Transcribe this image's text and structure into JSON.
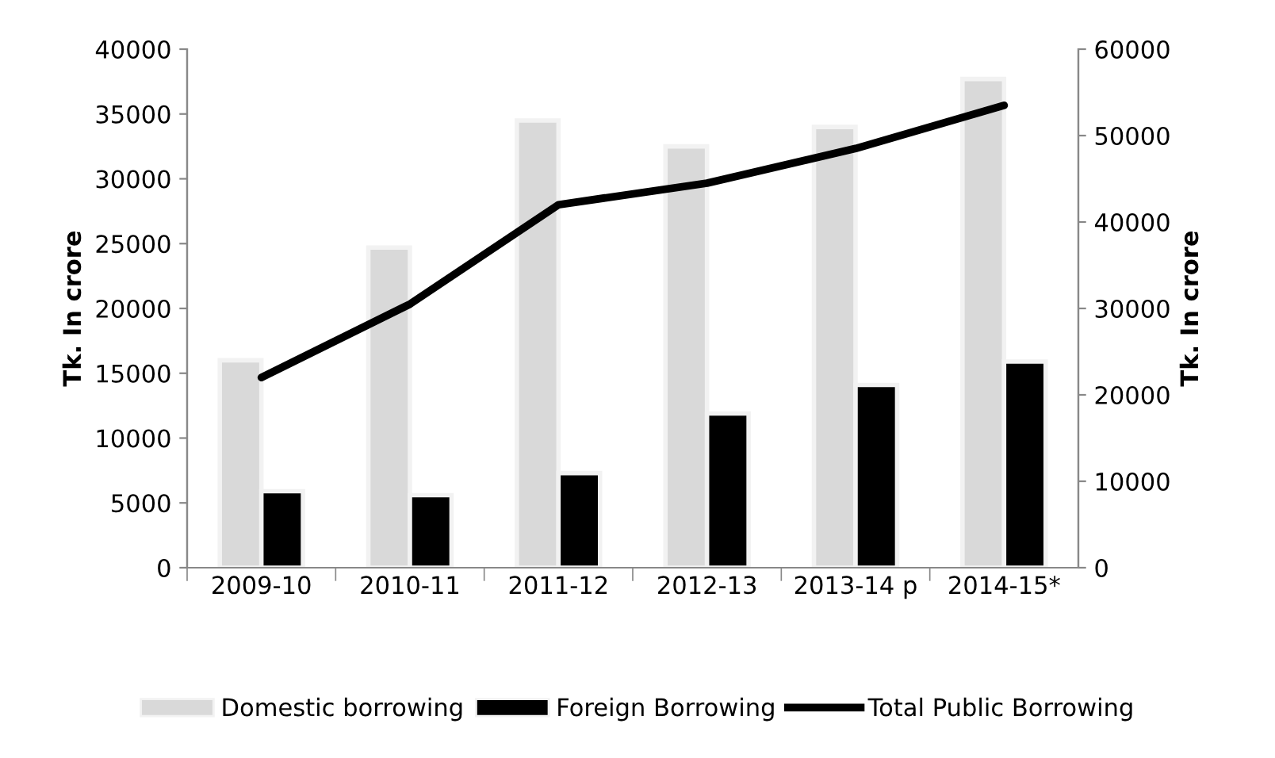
{
  "chart_data": {
    "type": "bar",
    "categories": [
      "2009-10",
      "2010-11",
      "2011-12",
      "2012-13",
      "2013-14 p",
      "2014-15*"
    ],
    "ylabel": "Tk. In crore",
    "y2label": "Tk. In crore",
    "ylim": [
      0,
      40000
    ],
    "yticks": [
      0,
      5000,
      10000,
      15000,
      20000,
      25000,
      30000,
      35000,
      40000
    ],
    "y2lim": [
      0,
      60000
    ],
    "y2ticks": [
      0,
      10000,
      20000,
      30000,
      40000,
      50000,
      60000
    ],
    "series": [
      {
        "name": "Domestic borrowing",
        "color": "#d9d9d9",
        "values": [
          16000,
          24700,
          34500,
          32500,
          34000,
          37700
        ]
      },
      {
        "name": "Foreign Borrowing",
        "color": "#000000",
        "values": [
          5900,
          5600,
          7300,
          11900,
          14100,
          15900
        ]
      },
      {
        "name": "Total Public Borrowing",
        "type": "line",
        "axis": "y2",
        "color": "#000000",
        "values": [
          22000,
          30500,
          42000,
          44500,
          48500,
          53500
        ]
      }
    ],
    "legend": "bottom",
    "grid": false,
    "marker": "none",
    "line_style": "solid"
  }
}
